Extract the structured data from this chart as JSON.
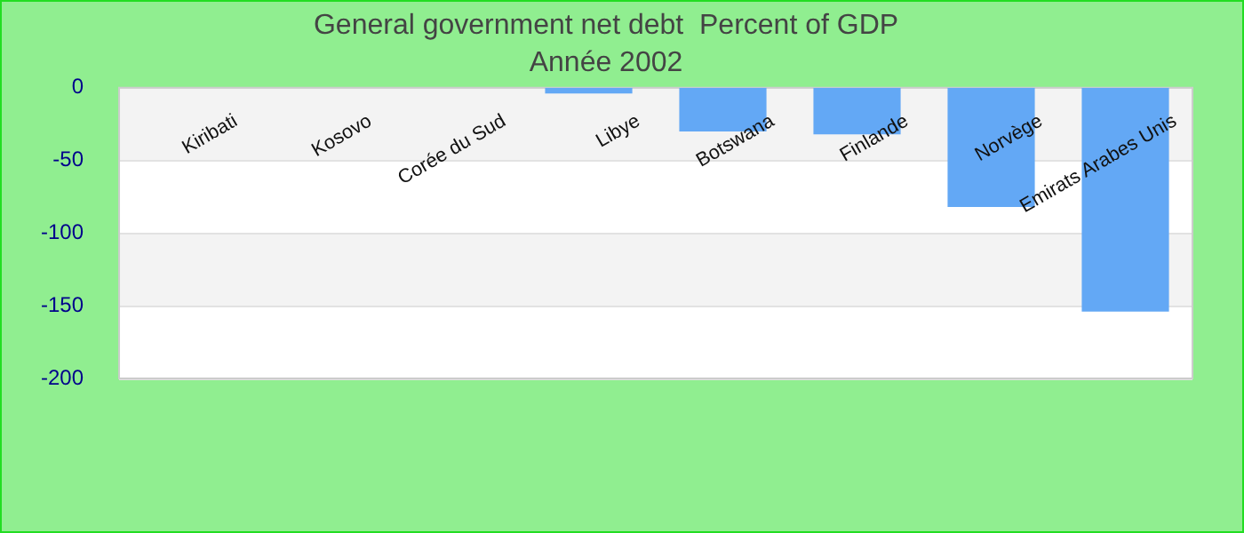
{
  "chart_data": {
    "type": "bar",
    "title": "General government net debt  Percent of GDP",
    "subtitle": "Année 2002",
    "categories": [
      "Kiribati",
      "Kosovo",
      "Corée du Sud",
      "Libye",
      "Botswana",
      "Finlande",
      "Norvège",
      "Emirats Arabes Unis"
    ],
    "values": [
      null,
      null,
      null,
      -4,
      -30,
      -32,
      -82,
      -154
    ],
    "color": "#63a8f5",
    "ylim": [
      -200,
      0
    ],
    "yticks": [
      -200,
      -150,
      -100,
      -50,
      0
    ],
    "grid": "y"
  }
}
